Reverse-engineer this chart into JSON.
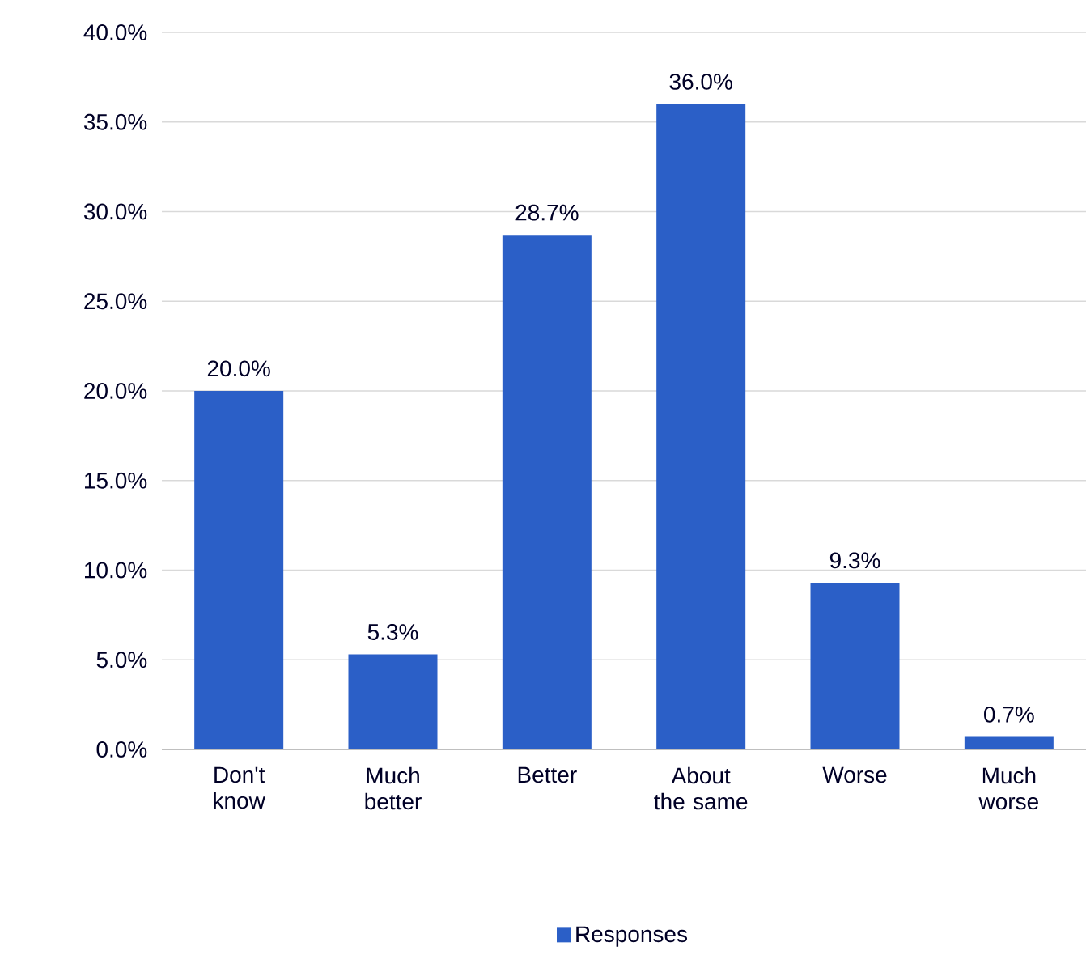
{
  "chart_data": {
    "type": "bar",
    "categories": [
      "Don't know",
      "Much better",
      "Better",
      "About the same",
      "Worse",
      "Much worse"
    ],
    "series": [
      {
        "name": "Responses",
        "color": "#2b5fc7",
        "values": [
          20.0,
          5.3,
          28.7,
          36.0,
          9.3,
          0.7
        ],
        "value_labels": [
          "20.0%",
          "5.3%",
          "28.7%",
          "36.0%",
          "9.3%",
          "0.7%"
        ]
      }
    ],
    "ylim": [
      0,
      40
    ],
    "yticks": [
      {
        "value": 0,
        "label": "0.0%"
      },
      {
        "value": 5,
        "label": "5.0%"
      },
      {
        "value": 10,
        "label": "10.0%"
      },
      {
        "value": 15,
        "label": "15.0%"
      },
      {
        "value": 20,
        "label": "20.0%"
      },
      {
        "value": 25,
        "label": "25.0%"
      },
      {
        "value": 30,
        "label": "30.0%"
      },
      {
        "value": 35,
        "label": "35.0%"
      },
      {
        "value": 40,
        "label": "40.0%"
      }
    ],
    "grid": "y",
    "legend": "bottom"
  }
}
